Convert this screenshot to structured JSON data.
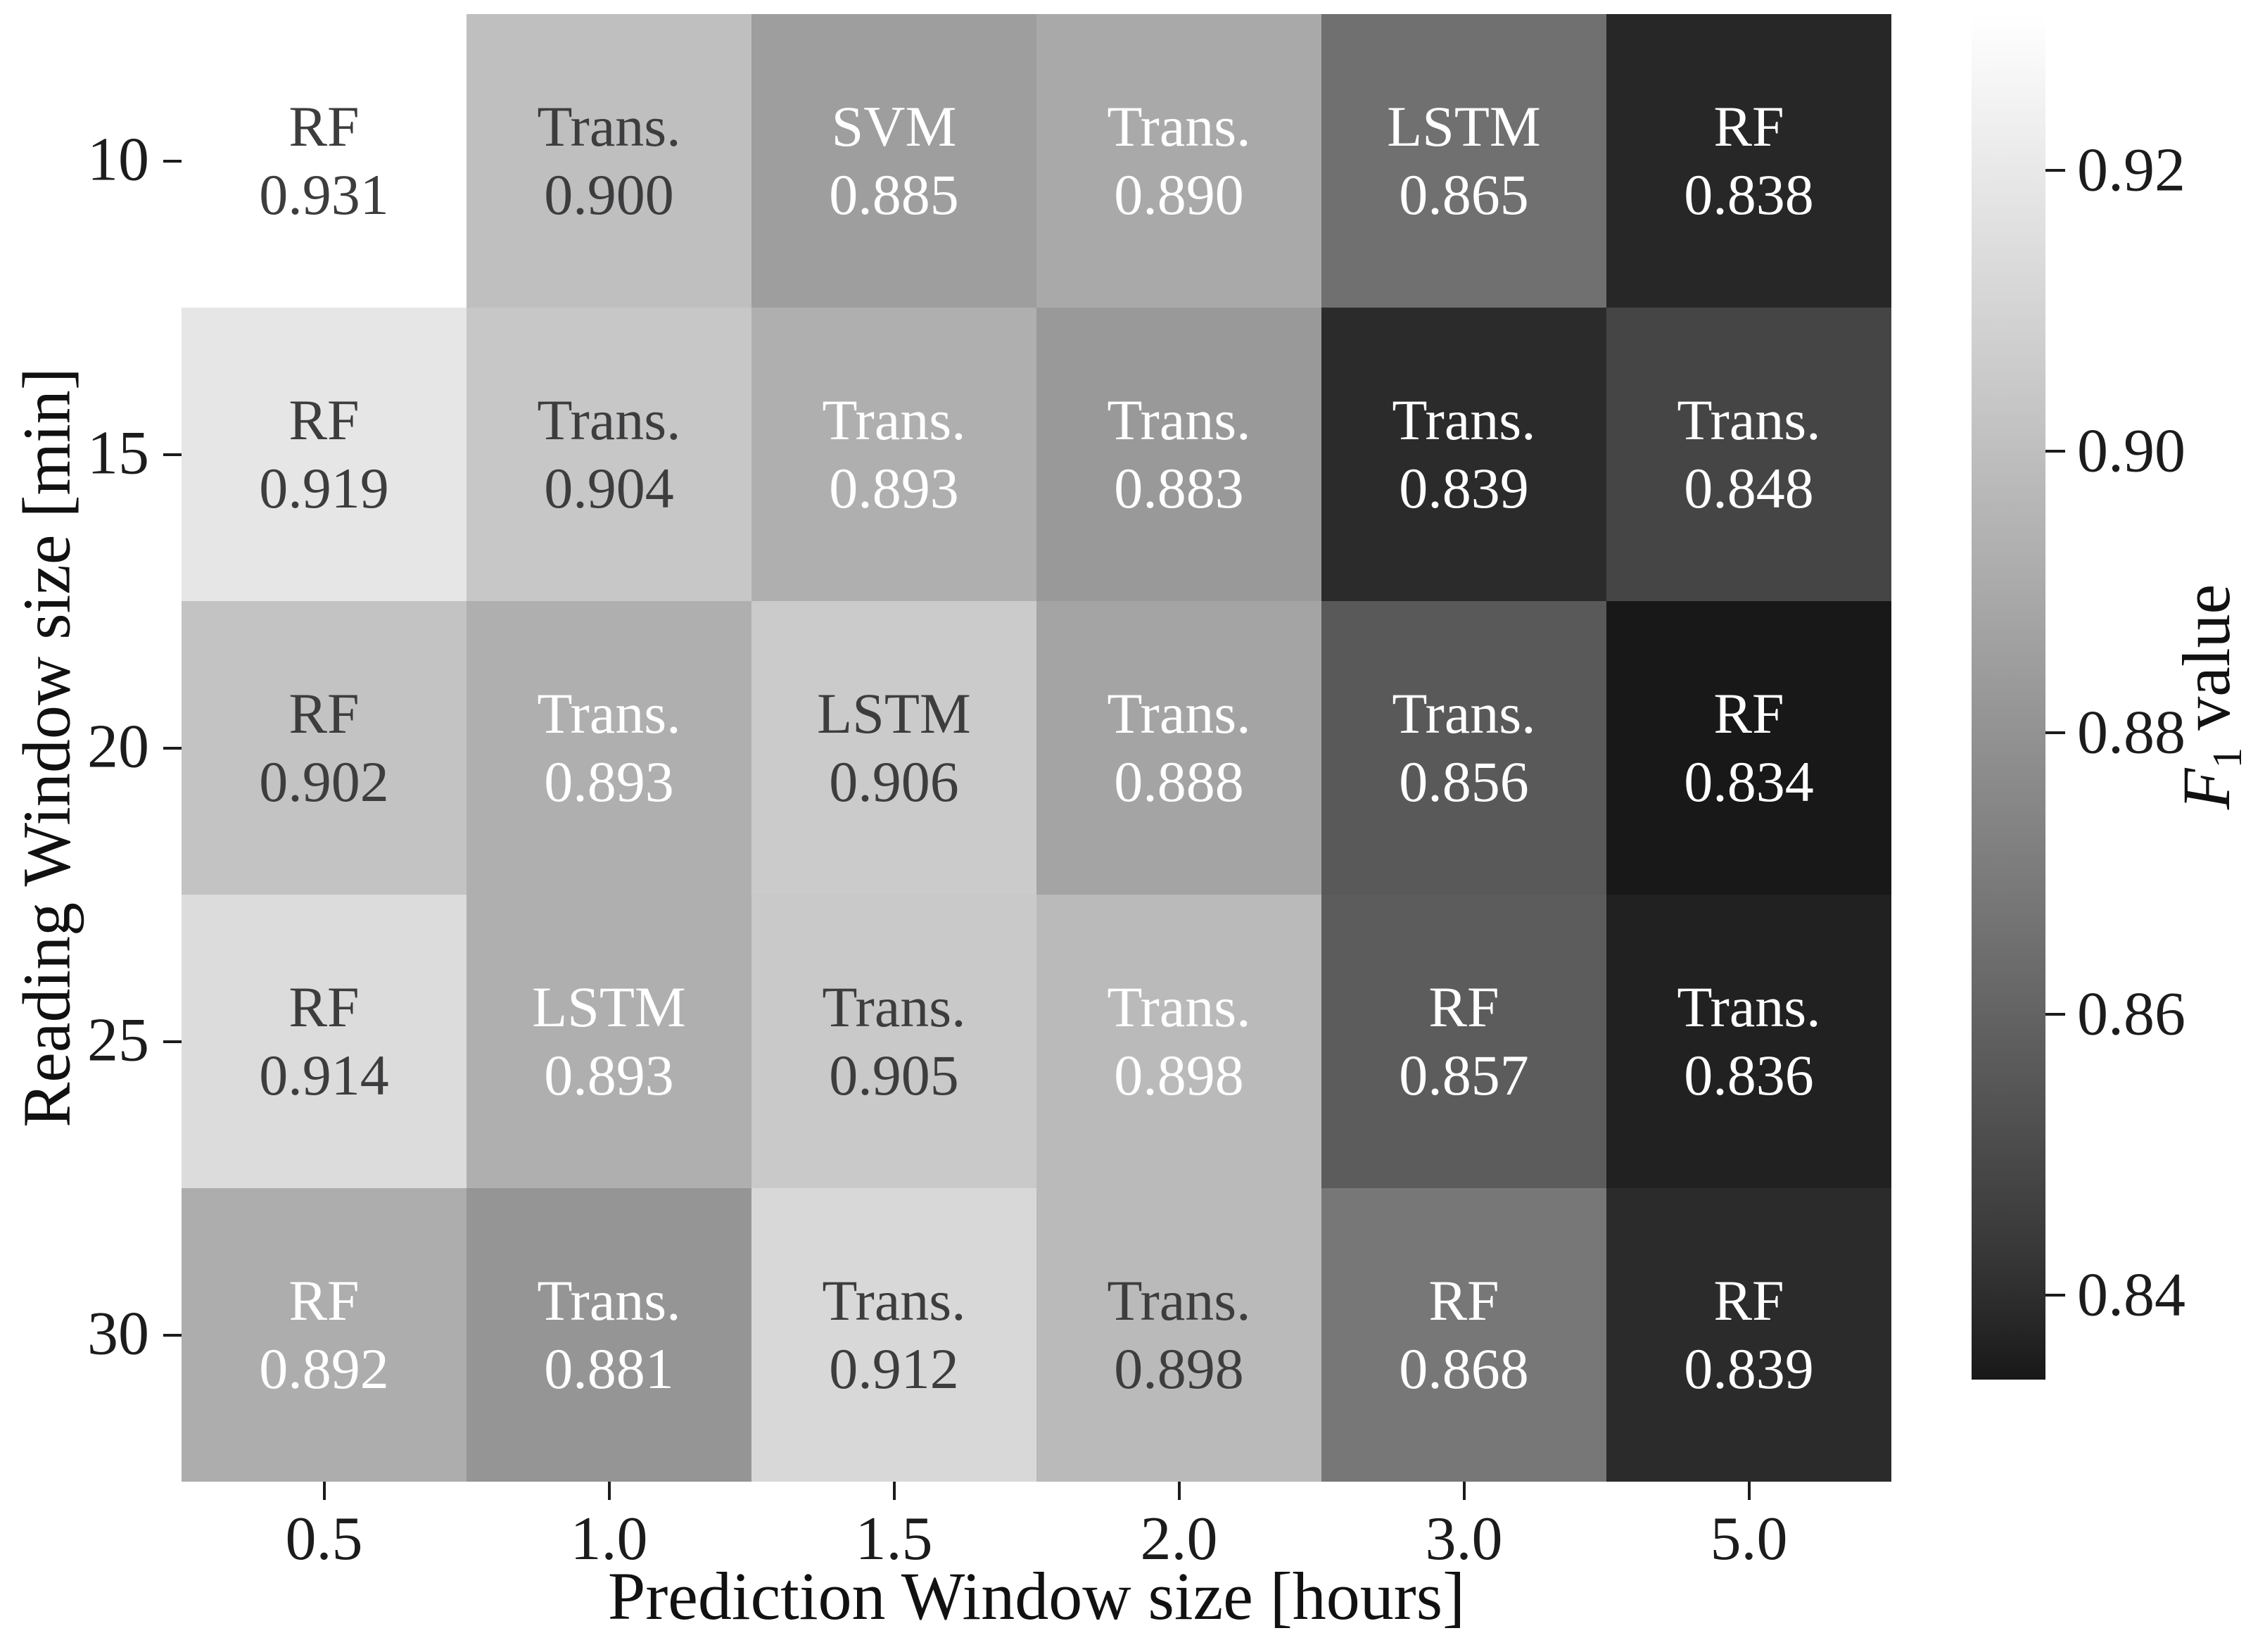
{
  "colors": {
    "background": "#ffffff",
    "text_dark": "#3d3d3f",
    "text_light": "#ffffff",
    "tick_color": "#1c1c1c"
  },
  "chart_data": {
    "type": "heatmap",
    "title": "",
    "xlabel": "Prediction Window size [hours]",
    "ylabel": "Reading Window size [min]",
    "x_categories": [
      "0.5",
      "1.0",
      "1.5",
      "2.0",
      "3.0",
      "5.0"
    ],
    "y_categories": [
      "10",
      "15",
      "20",
      "25",
      "30"
    ],
    "legend_position": "right-colorbar",
    "grid": false,
    "colorbar": {
      "label_f": "F",
      "label_sub": "1",
      "label_rest": " value",
      "vmin": 0.834,
      "vmax": 0.931,
      "ticks": [
        "0.92",
        "0.90",
        "0.88",
        "0.86",
        "0.84"
      ],
      "tick_values": [
        0.92,
        0.9,
        0.88,
        0.86,
        0.84
      ]
    },
    "cells": [
      [
        {
          "model": "RF",
          "value": "0.931",
          "text": "dark"
        },
        {
          "model": "Trans.",
          "value": "0.900",
          "text": "dark"
        },
        {
          "model": "SVM",
          "value": "0.885",
          "text": "light"
        },
        {
          "model": "Trans.",
          "value": "0.890",
          "text": "light"
        },
        {
          "model": "LSTM",
          "value": "0.865",
          "text": "light"
        },
        {
          "model": "RF",
          "value": "0.838",
          "text": "light"
        }
      ],
      [
        {
          "model": "RF",
          "value": "0.919",
          "text": "dark"
        },
        {
          "model": "Trans.",
          "value": "0.904",
          "text": "dark"
        },
        {
          "model": "Trans.",
          "value": "0.893",
          "text": "light"
        },
        {
          "model": "Trans.",
          "value": "0.883",
          "text": "light"
        },
        {
          "model": "Trans.",
          "value": "0.839",
          "text": "light"
        },
        {
          "model": "Trans.",
          "value": "0.848",
          "text": "light"
        }
      ],
      [
        {
          "model": "RF",
          "value": "0.902",
          "text": "dark"
        },
        {
          "model": "Trans.",
          "value": "0.893",
          "text": "light"
        },
        {
          "model": "LSTM",
          "value": "0.906",
          "text": "dark"
        },
        {
          "model": "Trans.",
          "value": "0.888",
          "text": "light"
        },
        {
          "model": "Trans.",
          "value": "0.856",
          "text": "light"
        },
        {
          "model": "RF",
          "value": "0.834",
          "text": "light"
        }
      ],
      [
        {
          "model": "RF",
          "value": "0.914",
          "text": "dark"
        },
        {
          "model": "LSTM",
          "value": "0.893",
          "text": "light"
        },
        {
          "model": "Trans.",
          "value": "0.905",
          "text": "dark"
        },
        {
          "model": "Trans.",
          "value": "0.898",
          "text": "light"
        },
        {
          "model": "RF",
          "value": "0.857",
          "text": "light"
        },
        {
          "model": "Trans.",
          "value": "0.836",
          "text": "light"
        }
      ],
      [
        {
          "model": "RF",
          "value": "0.892",
          "text": "light"
        },
        {
          "model": "Trans.",
          "value": "0.881",
          "text": "light"
        },
        {
          "model": "Trans.",
          "value": "0.912",
          "text": "dark"
        },
        {
          "model": "Trans.",
          "value": "0.898",
          "text": "dark"
        },
        {
          "model": "RF",
          "value": "0.868",
          "text": "light"
        },
        {
          "model": "RF",
          "value": "0.839",
          "text": "light"
        }
      ]
    ]
  }
}
